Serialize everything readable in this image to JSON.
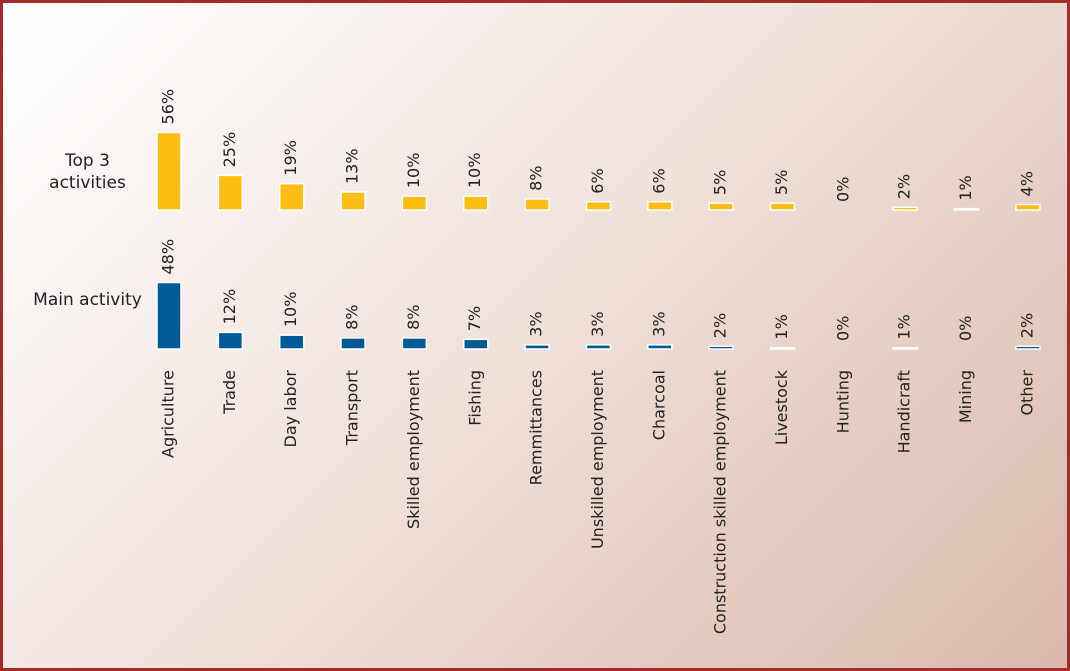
{
  "chart_data": {
    "type": "bar",
    "categories": [
      "Agriculture",
      "Trade",
      "Day labor",
      "Transport",
      "Skilled employment",
      "Fishing",
      "Remmittances",
      "Unskilled employment",
      "Charcoal",
      "Construction skilled employment",
      "Livestock",
      "Hunting",
      "Handicraft",
      "Mining",
      "Other"
    ],
    "series": [
      {
        "name": "Top 3 activities",
        "color": "#fdbe13",
        "values": [
          56,
          25,
          19,
          13,
          10,
          10,
          8,
          6,
          6,
          5,
          5,
          0,
          2,
          1,
          4
        ],
        "value_labels": [
          "56%",
          "25%",
          "19%",
          "13%",
          "10%",
          "10%",
          "8%",
          "6%",
          "6%",
          "5%",
          "5%",
          "0%",
          "2%",
          "1%",
          "4%"
        ]
      },
      {
        "name": "Main activity",
        "color": "#005a96",
        "values": [
          48,
          12,
          10,
          8,
          8,
          7,
          3,
          3,
          3,
          2,
          1,
          0,
          1,
          0,
          2
        ],
        "value_labels": [
          "48%",
          "12%",
          "10%",
          "8%",
          "8%",
          "7%",
          "3%",
          "3%",
          "3%",
          "2%",
          "1%",
          "0%",
          "1%",
          "0%",
          "2%"
        ]
      }
    ]
  }
}
